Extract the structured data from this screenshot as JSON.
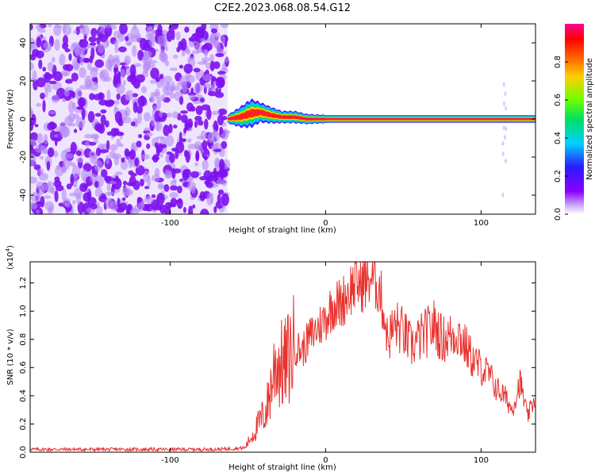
{
  "title": "C2E2.2023.068.08.54.G12",
  "colors": {
    "snr_line": "#e8332f",
    "noise_purple": "#7d12ee",
    "colorbar_stops": [
      "#ffffff",
      "#8a00ff",
      "#3b1cff",
      "#00d0ff",
      "#00e060",
      "#8cff00",
      "#ffd000",
      "#ff5a00",
      "#ff0000",
      "#ff0090"
    ]
  },
  "chart_data": [
    {
      "type": "heatmap",
      "name": "spectrogram",
      "xlabel": "Height of straight line (km)",
      "ylabel": "Frequency (Hz)",
      "xlim": [
        -190,
        135
      ],
      "ylim": [
        -50,
        50
      ],
      "xticks": [
        -100,
        0,
        100
      ],
      "xtick_labels": [
        "-100",
        "0",
        "100"
      ],
      "yticks": [
        -40,
        -20,
        0,
        20,
        40
      ],
      "ytick_labels": [
        "-40",
        "-20",
        "0",
        "20",
        "40"
      ],
      "noise_region_x": [
        -190,
        -63
      ],
      "signal_trace": {
        "x": [
          -63,
          -55,
          -48,
          -42,
          -35,
          -28,
          -20,
          -12,
          0,
          20,
          60,
          100,
          135
        ],
        "freq": [
          0,
          1,
          3,
          3.5,
          2,
          1,
          1,
          0,
          0,
          0,
          0,
          0,
          0
        ],
        "spread_hz": [
          2,
          5,
          7,
          5,
          4,
          3,
          3,
          2.5,
          2,
          2,
          2,
          2,
          2
        ]
      },
      "colorbar": {
        "label": "Normalized spectral amplitude",
        "range": [
          0,
          1
        ],
        "ticks": [
          0.0,
          0.2,
          0.4,
          0.6,
          0.8
        ],
        "tick_labels": [
          "0.0",
          "0.2",
          "0.4",
          "0.6",
          "0.8"
        ]
      }
    },
    {
      "type": "line",
      "name": "snr",
      "xlabel": "Height of straight line (km)",
      "ylabel": "SNR (10 * v/v)",
      "y_scale_label": "(x10",
      "y_scale_exp": "4",
      "xlim": [
        -190,
        135
      ],
      "ylim": [
        0,
        13500
      ],
      "xticks": [
        -100,
        0,
        100
      ],
      "xtick_labels": [
        "-100",
        "0",
        "100"
      ],
      "yticks": [
        0,
        2000,
        4000,
        6000,
        8000,
        10000,
        12000
      ],
      "ytick_labels": [
        "0.0",
        "0.2",
        "0.4",
        "0.6",
        "0.8",
        "1.0",
        "1.2"
      ],
      "series": [
        {
          "x": [
            -190,
            -150,
            -100,
            -70,
            -52,
            -45,
            -38,
            -32,
            -27,
            -20,
            -15,
            -10,
            -5,
            0,
            5,
            10,
            15,
            20,
            25,
            30,
            35,
            40,
            45,
            50,
            55,
            60,
            65,
            70,
            75,
            80,
            85,
            90,
            95,
            100,
            105,
            110,
            115,
            120,
            125,
            130,
            135
          ],
          "values": [
            200,
            200,
            200,
            200,
            300,
            1600,
            3000,
            6500,
            6000,
            7500,
            7200,
            8200,
            8800,
            9500,
            10500,
            10500,
            11500,
            12000,
            12000,
            12500,
            11500,
            8000,
            9000,
            8500,
            7500,
            8000,
            8500,
            9000,
            8000,
            8200,
            8500,
            7500,
            6500,
            6000,
            5500,
            4500,
            4000,
            3000,
            5000,
            2500,
            4000
          ]
        }
      ]
    }
  ]
}
